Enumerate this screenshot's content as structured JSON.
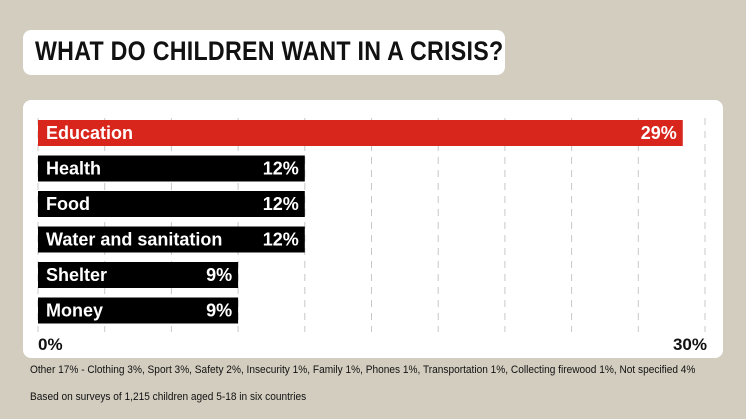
{
  "title": "WHAT DO CHILDREN WANT IN A CRISIS?",
  "colors": {
    "background": "#d2cdbf",
    "highlight": "#d9261c",
    "bar": "#000000",
    "gridline": "#c8c8c8"
  },
  "chart_data": {
    "type": "bar",
    "orientation": "horizontal",
    "title": "WHAT DO CHILDREN WANT IN A CRISIS?",
    "categories": [
      "Education",
      "Health",
      "Food",
      "Water and sanitation",
      "Shelter",
      "Money"
    ],
    "values": [
      29,
      12,
      12,
      12,
      9,
      9
    ],
    "value_labels": [
      "29%",
      "12%",
      "12%",
      "12%",
      "9%",
      "9%"
    ],
    "highlight_index": 0,
    "xlim": [
      0,
      30
    ],
    "grid": true,
    "tick_labels": [
      "0%",
      "30%"
    ],
    "xlabel": "",
    "ylabel": ""
  },
  "footnotes": {
    "other": "Other 17% - Clothing 3%, Sport 3%, Safety 2%, Insecurity 1%, Family 1%, Phones 1%, Transportation 1%, Collecting firewood 1%, Not specified 4%",
    "source": "Based on surveys of 1,215 children aged 5-18 in six countries"
  }
}
